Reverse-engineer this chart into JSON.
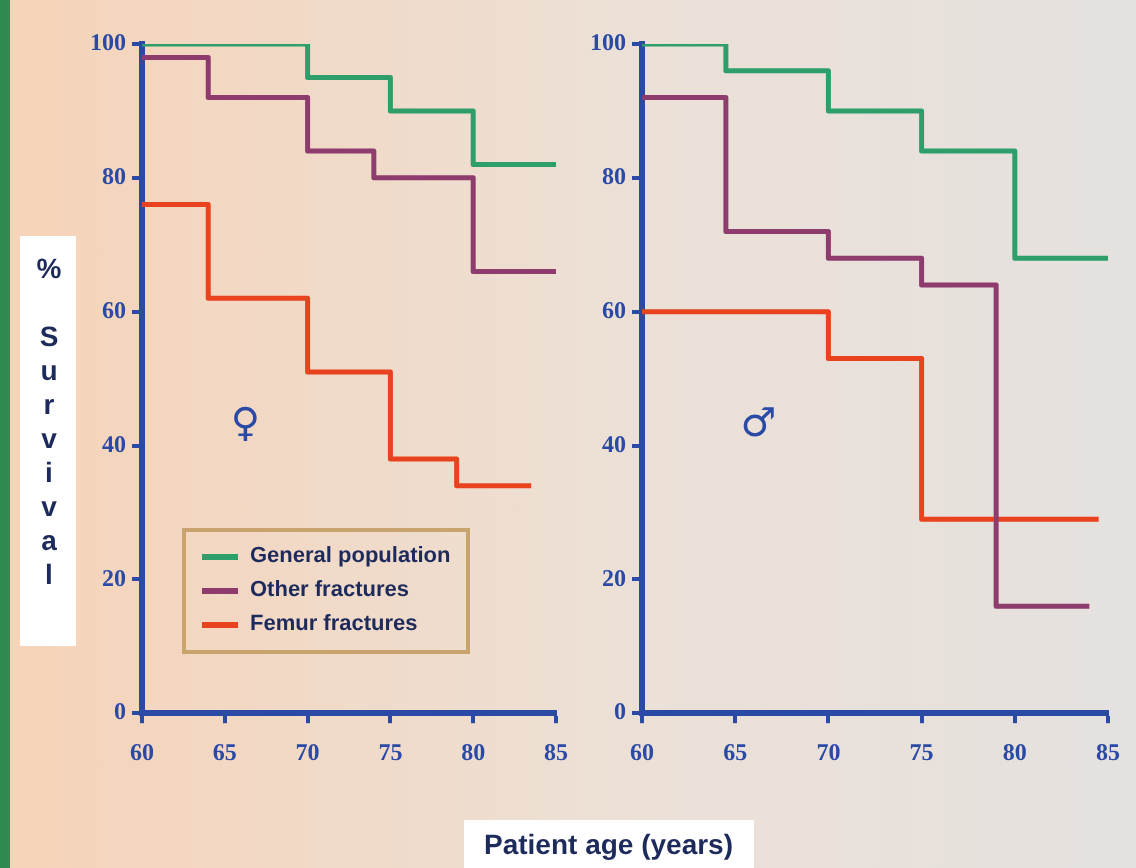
{
  "chart_data": [
    {
      "type": "step",
      "ylabel": "% Survival",
      "xlabel": "Patient age (years)",
      "xlim": [
        60,
        85
      ],
      "xticks": [
        60,
        65,
        70,
        75,
        80,
        85
      ],
      "ylim": [
        0,
        100
      ],
      "yticks": [
        0,
        20,
        40,
        60,
        80,
        100
      ],
      "grid": false,
      "legend": "bottom left",
      "annotations": [
        "♀"
      ],
      "series": [
        {
          "name": "General population",
          "color": "#2e9e6b",
          "x": [
            60,
            70,
            75,
            80,
            85
          ],
          "values": [
            100,
            95,
            90,
            82,
            82
          ]
        },
        {
          "name": "Other fractures",
          "color": "#8e3b6e",
          "x": [
            60,
            64,
            70,
            74,
            80,
            85
          ],
          "values": [
            98,
            92,
            84,
            80,
            66,
            66
          ]
        },
        {
          "name": "Femur fractures",
          "color": "#e8431e",
          "x": [
            60,
            64,
            70,
            75,
            79,
            83.5
          ],
          "values": [
            76,
            62,
            51,
            38,
            34,
            34
          ]
        }
      ]
    },
    {
      "type": "step",
      "xlim": [
        60,
        85
      ],
      "xticks": [
        60,
        65,
        70,
        75,
        80,
        85
      ],
      "ylim": [
        0,
        100
      ],
      "yticks": [
        0,
        20,
        40,
        60,
        80,
        100
      ],
      "grid": false,
      "annotations": [
        "♂"
      ],
      "series": [
        {
          "color": "#2e9e6b",
          "x": [
            60,
            64.5,
            70,
            75,
            80,
            85
          ],
          "values": [
            100,
            96,
            90,
            84,
            68,
            68
          ]
        },
        {
          "color": "#8e3b6e",
          "x": [
            60,
            64.5,
            70,
            75,
            79,
            84
          ],
          "values": [
            92,
            72,
            68,
            64,
            16,
            16
          ]
        },
        {
          "color": "#e8431e",
          "x": [
            60,
            70,
            75,
            84.5
          ],
          "values": [
            60,
            53,
            29,
            29
          ]
        }
      ]
    }
  ]
}
